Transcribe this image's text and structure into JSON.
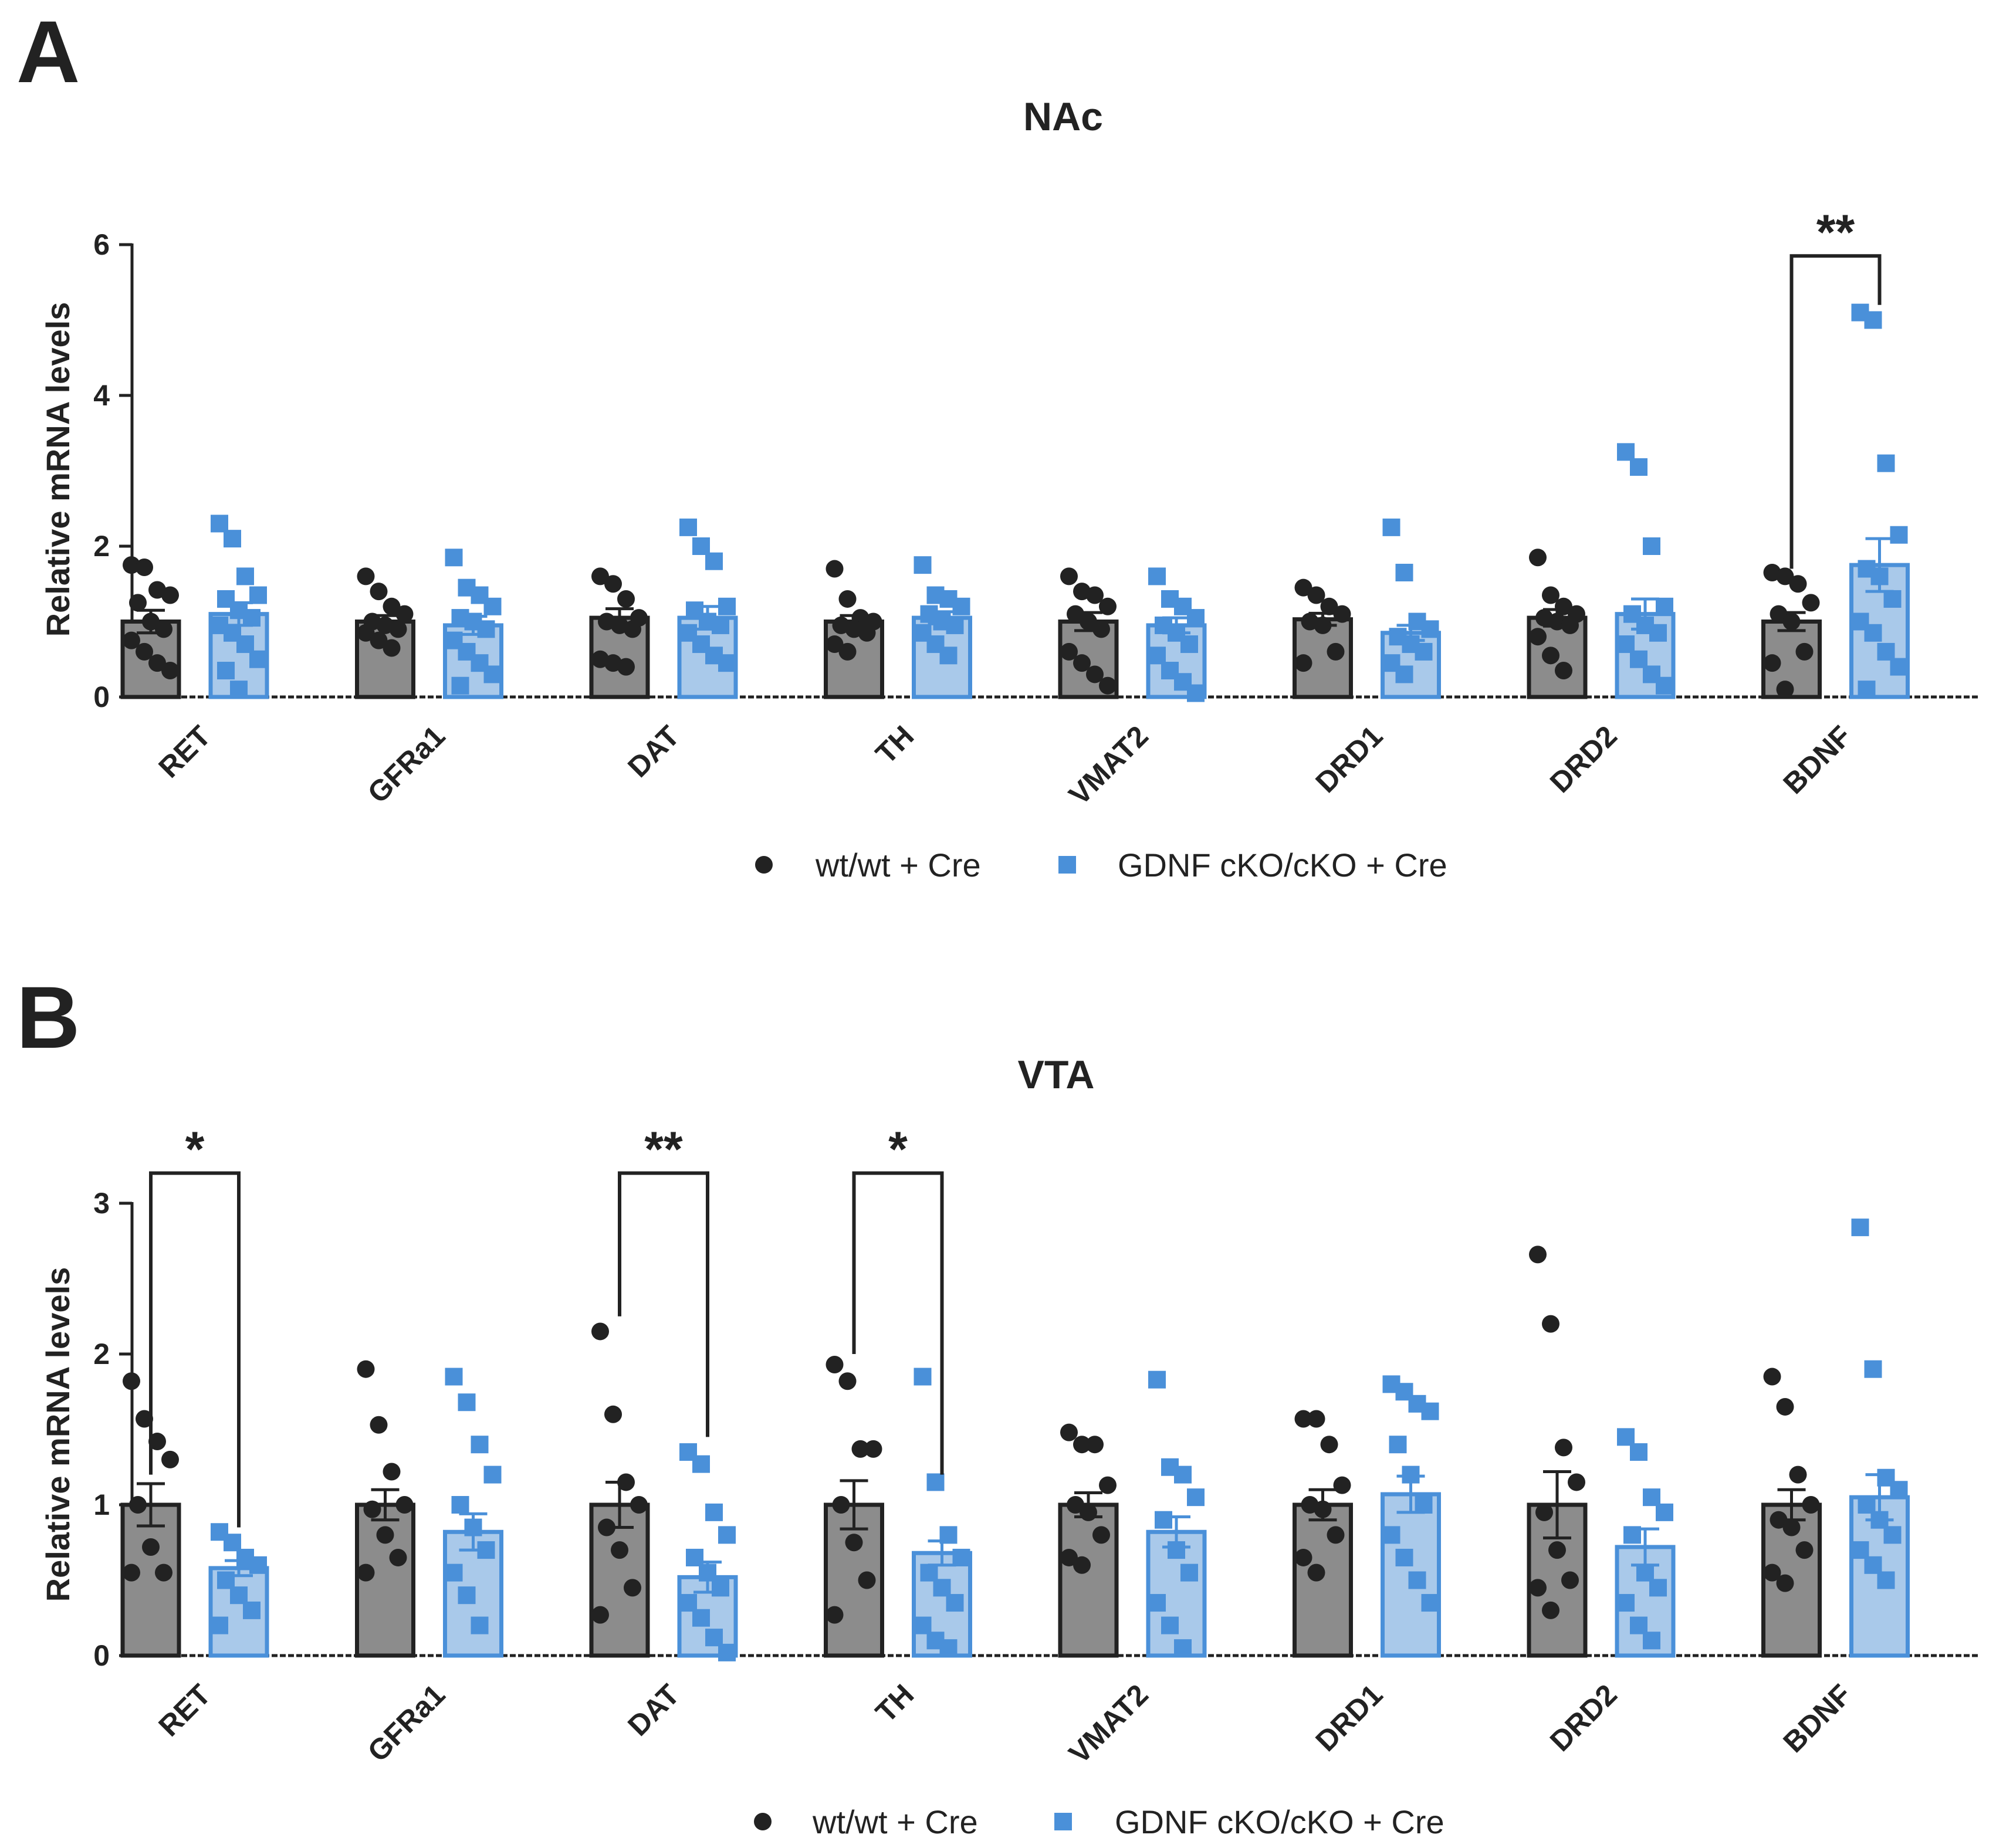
{
  "colors": {
    "wt": "#222222",
    "ko": "#4a90d9",
    "wt_bar": "#8c8c8c",
    "ko_bar": "#a9c9ea",
    "axis": "#222222"
  },
  "chart_data": [
    {
      "panel": "A",
      "type": "bar",
      "title": "NAc",
      "ylabel": "Relative mRNA levels",
      "ylim": [
        0,
        6
      ],
      "yticks": [
        0,
        2,
        4,
        6
      ],
      "categories": [
        "RET",
        "GFRa1",
        "DAT",
        "TH",
        "VMAT2",
        "DRD1",
        "DRD2",
        "BDNF"
      ],
      "series": [
        {
          "name": "wt/wt + Cre",
          "marker": "circle",
          "values": [
            1.0,
            1.0,
            1.05,
            1.0,
            1.0,
            1.03,
            1.05,
            1.0
          ],
          "errors": [
            0.15,
            0.08,
            0.12,
            0.08,
            0.12,
            0.08,
            0.11,
            0.12
          ],
          "points": [
            [
              1.75,
              1.72,
              1.42,
              1.35,
              1.25,
              1.0,
              0.9,
              0.75,
              0.6,
              0.45,
              0.35
            ],
            [
              1.6,
              1.4,
              1.2,
              1.1,
              1.0,
              0.95,
              0.9,
              0.85,
              0.75,
              0.65
            ],
            [
              1.6,
              1.5,
              1.3,
              1.05,
              1.0,
              0.95,
              0.9,
              0.5,
              0.45,
              0.4
            ],
            [
              1.7,
              1.3,
              1.05,
              1.0,
              0.95,
              0.9,
              0.85,
              0.7,
              0.6
            ],
            [
              1.6,
              1.4,
              1.35,
              1.2,
              1.1,
              1.0,
              0.9,
              0.6,
              0.45,
              0.3,
              0.15
            ],
            [
              1.45,
              1.35,
              1.2,
              1.1,
              1.0,
              0.95,
              0.6,
              0.45
            ],
            [
              1.85,
              1.35,
              1.2,
              1.1,
              1.05,
              1.0,
              0.95,
              0.8,
              0.55,
              0.35
            ],
            [
              1.65,
              1.6,
              1.5,
              1.25,
              1.1,
              1.0,
              0.6,
              0.45,
              0.1
            ]
          ]
        },
        {
          "name": "GDNF cKO/cKO + Cre",
          "marker": "square",
          "values": [
            1.1,
            0.95,
            1.05,
            1.05,
            0.95,
            0.85,
            1.1,
            1.75
          ],
          "errors": [
            0.15,
            0.12,
            0.15,
            0.08,
            0.1,
            0.1,
            0.2,
            0.35
          ],
          "points": [
            [
              2.3,
              2.1,
              1.6,
              1.35,
              1.3,
              1.15,
              1.05,
              0.95,
              0.85,
              0.7,
              0.5,
              0.35,
              0.1
            ],
            [
              1.85,
              1.45,
              1.35,
              1.2,
              1.05,
              1.0,
              0.9,
              0.75,
              0.6,
              0.45,
              0.3,
              0.15
            ],
            [
              2.25,
              2.0,
              1.8,
              1.2,
              1.15,
              1.0,
              0.95,
              0.85,
              0.7,
              0.55,
              0.45
            ],
            [
              1.75,
              1.35,
              1.3,
              1.2,
              1.1,
              1.0,
              0.95,
              0.85,
              0.7,
              0.55
            ],
            [
              1.6,
              1.3,
              1.2,
              1.05,
              0.95,
              0.85,
              0.7,
              0.55,
              0.35,
              0.2,
              0.05
            ],
            [
              2.25,
              1.65,
              1.0,
              0.9,
              0.8,
              0.7,
              0.6,
              0.45,
              0.3
            ],
            [
              3.25,
              3.05,
              2.0,
              1.2,
              1.1,
              0.95,
              0.85,
              0.7,
              0.5,
              0.3,
              0.15
            ],
            [
              5.1,
              5.0,
              3.1,
              2.15,
              1.7,
              1.6,
              1.3,
              1.0,
              0.85,
              0.6,
              0.4,
              0.1
            ]
          ]
        }
      ],
      "significance": [
        {
          "category": "BDNF",
          "label": "**",
          "bracket_left_y": 1.7,
          "bracket_right_y": 5.2,
          "top_y": 5.85
        }
      ]
    },
    {
      "panel": "B",
      "type": "bar",
      "title": "VTA",
      "ylabel": "Relative mRNA levels",
      "ylim": [
        0,
        3
      ],
      "yticks": [
        0,
        1,
        2,
        3
      ],
      "categories": [
        "RET",
        "GFRa1",
        "DAT",
        "TH",
        "VMAT2",
        "DRD1",
        "DRD2",
        "BDNF"
      ],
      "series": [
        {
          "name": "wt/wt + Cre",
          "marker": "circle",
          "values": [
            1.0,
            1.0,
            1.0,
            1.0,
            1.0,
            1.0,
            1.0,
            1.0
          ],
          "errors": [
            0.14,
            0.1,
            0.15,
            0.16,
            0.08,
            0.1,
            0.22,
            0.1
          ],
          "points": [
            [
              1.82,
              1.57,
              1.42,
              1.3,
              1.0,
              0.72,
              0.55,
              0.55
            ],
            [
              1.9,
              1.53,
              1.22,
              1.0,
              0.97,
              0.8,
              0.65,
              0.55
            ],
            [
              2.15,
              1.6,
              1.15,
              1.0,
              0.85,
              0.7,
              0.45,
              0.27
            ],
            [
              1.93,
              1.82,
              1.37,
              1.37,
              1.0,
              0.75,
              0.5,
              0.27
            ],
            [
              1.48,
              1.4,
              1.4,
              1.13,
              1.0,
              0.95,
              0.8,
              0.65,
              0.6
            ],
            [
              1.57,
              1.57,
              1.4,
              1.13,
              1.0,
              0.97,
              0.8,
              0.65,
              0.55
            ],
            [
              2.66,
              2.2,
              1.38,
              1.15,
              0.95,
              0.7,
              0.5,
              0.45,
              0.3
            ],
            [
              1.85,
              1.65,
              1.2,
              1.0,
              0.9,
              0.85,
              0.7,
              0.55,
              0.48
            ]
          ]
        },
        {
          "name": "GDNF cKO/cKO + Cre",
          "marker": "square",
          "values": [
            0.58,
            0.82,
            0.52,
            0.68,
            0.82,
            1.07,
            0.72,
            1.05
          ],
          "errors": [
            0.05,
            0.12,
            0.1,
            0.08,
            0.1,
            0.12,
            0.12,
            0.15
          ],
          "points": [
            [
              0.82,
              0.75,
              0.65,
              0.6,
              0.5,
              0.4,
              0.3,
              0.2
            ],
            [
              1.85,
              1.68,
              1.4,
              1.2,
              1.0,
              0.85,
              0.7,
              0.55,
              0.4,
              0.2
            ],
            [
              1.35,
              1.27,
              0.95,
              0.8,
              0.65,
              0.55,
              0.45,
              0.35,
              0.25,
              0.12,
              0.02
            ],
            [
              1.85,
              1.15,
              0.8,
              0.65,
              0.55,
              0.45,
              0.35,
              0.2,
              0.1,
              0.05
            ],
            [
              1.83,
              1.25,
              1.2,
              1.05,
              0.9,
              0.7,
              0.55,
              0.35,
              0.2,
              0.05
            ],
            [
              1.8,
              1.75,
              1.67,
              1.62,
              1.4,
              1.2,
              1.0,
              0.8,
              0.65,
              0.5,
              0.35
            ],
            [
              1.45,
              1.35,
              1.05,
              0.95,
              0.8,
              0.55,
              0.45,
              0.35,
              0.2,
              0.1
            ],
            [
              2.84,
              1.9,
              1.18,
              1.1,
              1.0,
              0.9,
              0.8,
              0.7,
              0.6,
              0.5
            ]
          ]
        }
      ],
      "significance": [
        {
          "category": "RET",
          "label": "*",
          "bracket_left_y": 1.2,
          "bracket_right_y": 0.85,
          "top_y": 3.2
        },
        {
          "category": "DAT",
          "label": "**",
          "bracket_left_y": 2.25,
          "bracket_right_y": 1.45,
          "top_y": 3.2
        },
        {
          "category": "TH",
          "label": "*",
          "bracket_left_y": 2.0,
          "bracket_right_y": 1.2,
          "top_y": 3.2
        }
      ]
    }
  ],
  "panel_a": {
    "letter": "A",
    "title": "NAc",
    "ylabel": "Relative mRNA levels"
  },
  "panel_b": {
    "letter": "B",
    "title": "VTA",
    "ylabel": "Relative mRNA levels"
  },
  "legend": {
    "wt_label": "wt/wt + Cre",
    "ko_label": "GDNF cKO/cKO + Cre"
  }
}
